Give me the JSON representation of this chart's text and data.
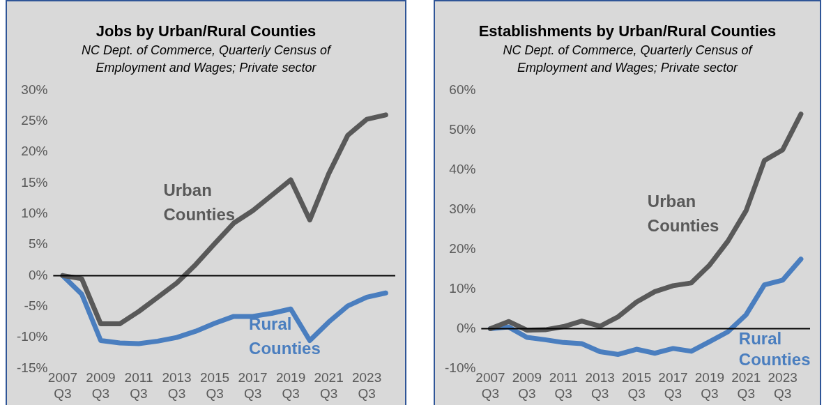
{
  "chart_data": [
    {
      "type": "line",
      "title": "Jobs by Urban/Rural Counties",
      "subtitle": "NC Dept. of Commerce, Quarterly Census of Employment and Wages; Private sector",
      "categories": [
        "2007 Q3",
        null,
        "2009 Q3",
        null,
        "2011 Q3",
        null,
        "2013 Q3",
        null,
        "2015 Q3",
        null,
        "2017 Q3",
        null,
        "2019 Q3",
        null,
        "2021 Q3",
        null,
        "2023 Q3",
        null
      ],
      "series": [
        {
          "name": "Urban Counties",
          "color": "#595959",
          "values": [
            0,
            -0.5,
            -7.8,
            -7.8,
            -5.8,
            -3.5,
            -1.2,
            1.8,
            5.2,
            8.5,
            10.5,
            13,
            15.5,
            9,
            16.5,
            22.7,
            25.3,
            26
          ]
        },
        {
          "name": "Rural Counties",
          "color": "#4a7ebf",
          "values": [
            0,
            -3,
            -10.5,
            -10.9,
            -11,
            -10.6,
            -10,
            -9,
            -7.7,
            -6.6,
            -6.6,
            -6.1,
            -5.4,
            -10.5,
            -7.5,
            -4.9,
            -3.5,
            -2.8
          ]
        }
      ],
      "ylim": [
        -15,
        30
      ],
      "yticks": [
        {
          "value": -15,
          "label": "-15%"
        },
        {
          "value": -10,
          "label": "-10%"
        },
        {
          "value": -5,
          "label": "-5%"
        },
        {
          "value": 0,
          "label": "0%"
        },
        {
          "value": 5,
          "label": "5%"
        },
        {
          "value": 10,
          "label": "10%"
        },
        {
          "value": 15,
          "label": "15%"
        },
        {
          "value": 20,
          "label": "20%"
        },
        {
          "value": 25,
          "label": "25%"
        },
        {
          "value": 30,
          "label": "30%"
        }
      ],
      "ref_lines": [
        {
          "axis": "y",
          "value": 0,
          "color": "#000000"
        }
      ],
      "grid": false,
      "legend": false,
      "marker": "none",
      "line_style": "solid"
    },
    {
      "type": "line",
      "title": "Establishments by Urban/Rural Counties",
      "subtitle": "NC Dept. of Commerce, Quarterly Census of Employment and Wages; Private sector",
      "categories": [
        "2007 Q3",
        null,
        "2009 Q3",
        null,
        "2011 Q3",
        null,
        "2013 Q3",
        null,
        "2015 Q3",
        null,
        "2017 Q3",
        null,
        "2019 Q3",
        null,
        "2021 Q3",
        null,
        "2023 Q3",
        null
      ],
      "series": [
        {
          "name": "Urban Counties",
          "color": "#595959",
          "values": [
            0,
            1.8,
            -0.4,
            -0.3,
            0.5,
            1.9,
            0.6,
            3,
            6.7,
            9.3,
            10.8,
            11.5,
            16,
            22,
            29.7,
            42.3,
            45,
            54
          ]
        },
        {
          "name": "Rural Counties",
          "color": "#4a7ebf",
          "values": [
            0,
            0.4,
            -2.2,
            -2.8,
            -3.5,
            -3.8,
            -5.8,
            -6.5,
            -5.2,
            -6.2,
            -5,
            -5.7,
            -3.3,
            -0.8,
            3.5,
            11,
            12.2,
            17.5
          ]
        }
      ],
      "ylim": [
        -10,
        60
      ],
      "yticks": [
        {
          "value": -10,
          "label": "-10%"
        },
        {
          "value": 0,
          "label": "0%"
        },
        {
          "value": 10,
          "label": "10%"
        },
        {
          "value": 20,
          "label": "20%"
        },
        {
          "value": 30,
          "label": "30%"
        },
        {
          "value": 40,
          "label": "40%"
        },
        {
          "value": 50,
          "label": "50%"
        },
        {
          "value": 60,
          "label": "60%"
        }
      ],
      "ref_lines": [
        {
          "axis": "y",
          "value": 0,
          "color": "#000000"
        }
      ],
      "grid": false,
      "legend": false,
      "marker": "none",
      "line_style": "solid"
    }
  ]
}
